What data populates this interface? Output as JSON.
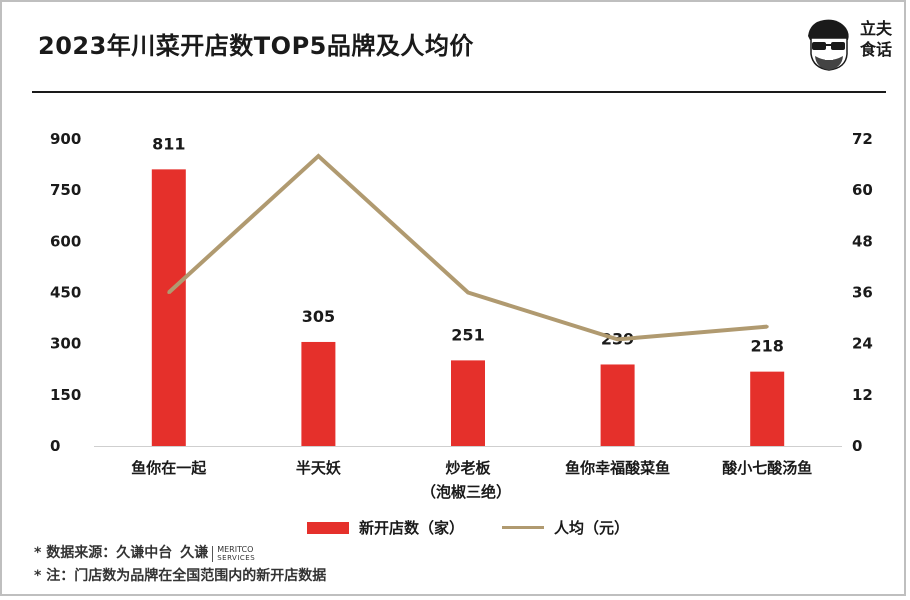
{
  "title": "2023年川菜开店数TOP5品牌及人均价",
  "brand": {
    "line1": "立夫",
    "line2": "食话"
  },
  "chart_data": {
    "type": "bar",
    "categories": [
      {
        "line1": "鱼你在一起",
        "line2": ""
      },
      {
        "line1": "半天妖",
        "line2": ""
      },
      {
        "line1": "炒老板",
        "line2": "（泡椒三绝）"
      },
      {
        "line1": "鱼你幸福酸菜鱼",
        "line2": ""
      },
      {
        "line1": "酸小七酸汤鱼",
        "line2": ""
      }
    ],
    "series": [
      {
        "name": "新开店数（家）",
        "type": "bar",
        "axis": "left",
        "color": "#e5302b",
        "values": [
          811,
          305,
          251,
          239,
          218
        ],
        "labels": [
          "811",
          "305",
          "251",
          "239",
          "218"
        ]
      },
      {
        "name": "人均（元）",
        "type": "line",
        "axis": "right",
        "color": "#b09a70",
        "values": [
          36,
          68,
          36,
          25,
          28
        ]
      }
    ],
    "left_axis": {
      "min": 0,
      "max": 900,
      "ticks": [
        "0",
        "150",
        "300",
        "450",
        "600",
        "750",
        "900"
      ]
    },
    "right_axis": {
      "min": 0,
      "max": 72,
      "ticks": [
        "0",
        "12",
        "24",
        "36",
        "48",
        "60",
        "72"
      ]
    },
    "grid": false,
    "legend_position": "bottom"
  },
  "notes": {
    "source": "* 数据来源：久谦中台",
    "meritco_cn": "久谦",
    "meritco_en": "MERITCO",
    "meritco_sub": "SERVICES",
    "note": "* 注：门店数为品牌在全国范围内的新开店数据"
  }
}
